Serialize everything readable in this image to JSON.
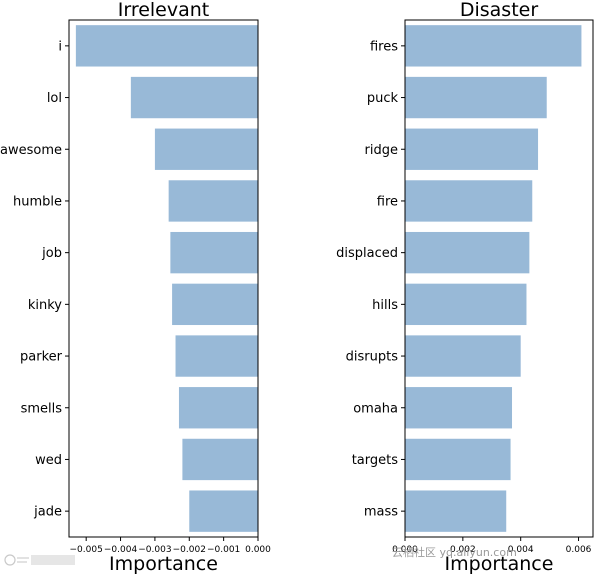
{
  "chart_data": [
    {
      "type": "bar",
      "orientation": "horizontal",
      "title": "Irrelevant",
      "xlabel": "Importance",
      "ylabel": "",
      "categories": [
        "i",
        "lol",
        "awesome",
        "humble",
        "job",
        "kinky",
        "parker",
        "smells",
        "wed",
        "jade"
      ],
      "values": [
        -0.0053,
        -0.0037,
        -0.003,
        -0.0026,
        -0.00255,
        -0.0025,
        -0.0024,
        -0.0023,
        -0.0022,
        -0.002
      ],
      "xlim": [
        -0.0055,
        0.0
      ],
      "xticks": [
        -0.005,
        -0.004,
        -0.003,
        -0.002,
        -0.001,
        0.0
      ],
      "xtick_labels": [
        "−0.005",
        "−0.004",
        "−0.003",
        "−0.002",
        "−0.001",
        "0.000"
      ],
      "color": "#98b9d7",
      "grid": false
    },
    {
      "type": "bar",
      "orientation": "horizontal",
      "title": "Disaster",
      "xlabel": "Importance",
      "ylabel": "",
      "categories": [
        "fires",
        "puck",
        "ridge",
        "fire",
        "displaced",
        "hills",
        "disrupts",
        "omaha",
        "targets",
        "mass"
      ],
      "values": [
        0.0061,
        0.0049,
        0.0046,
        0.0044,
        0.0043,
        0.0042,
        0.004,
        0.0037,
        0.00365,
        0.0035
      ],
      "xlim": [
        0.0,
        0.0065
      ],
      "xticks": [
        0.0,
        0.002,
        0.004,
        0.006
      ],
      "xtick_labels": [
        "0.000",
        "0.002",
        "0.004",
        "0.006"
      ],
      "color": "#98b9d7",
      "grid": false
    }
  ],
  "watermark": "云栖社区 yq.aliyun.com"
}
